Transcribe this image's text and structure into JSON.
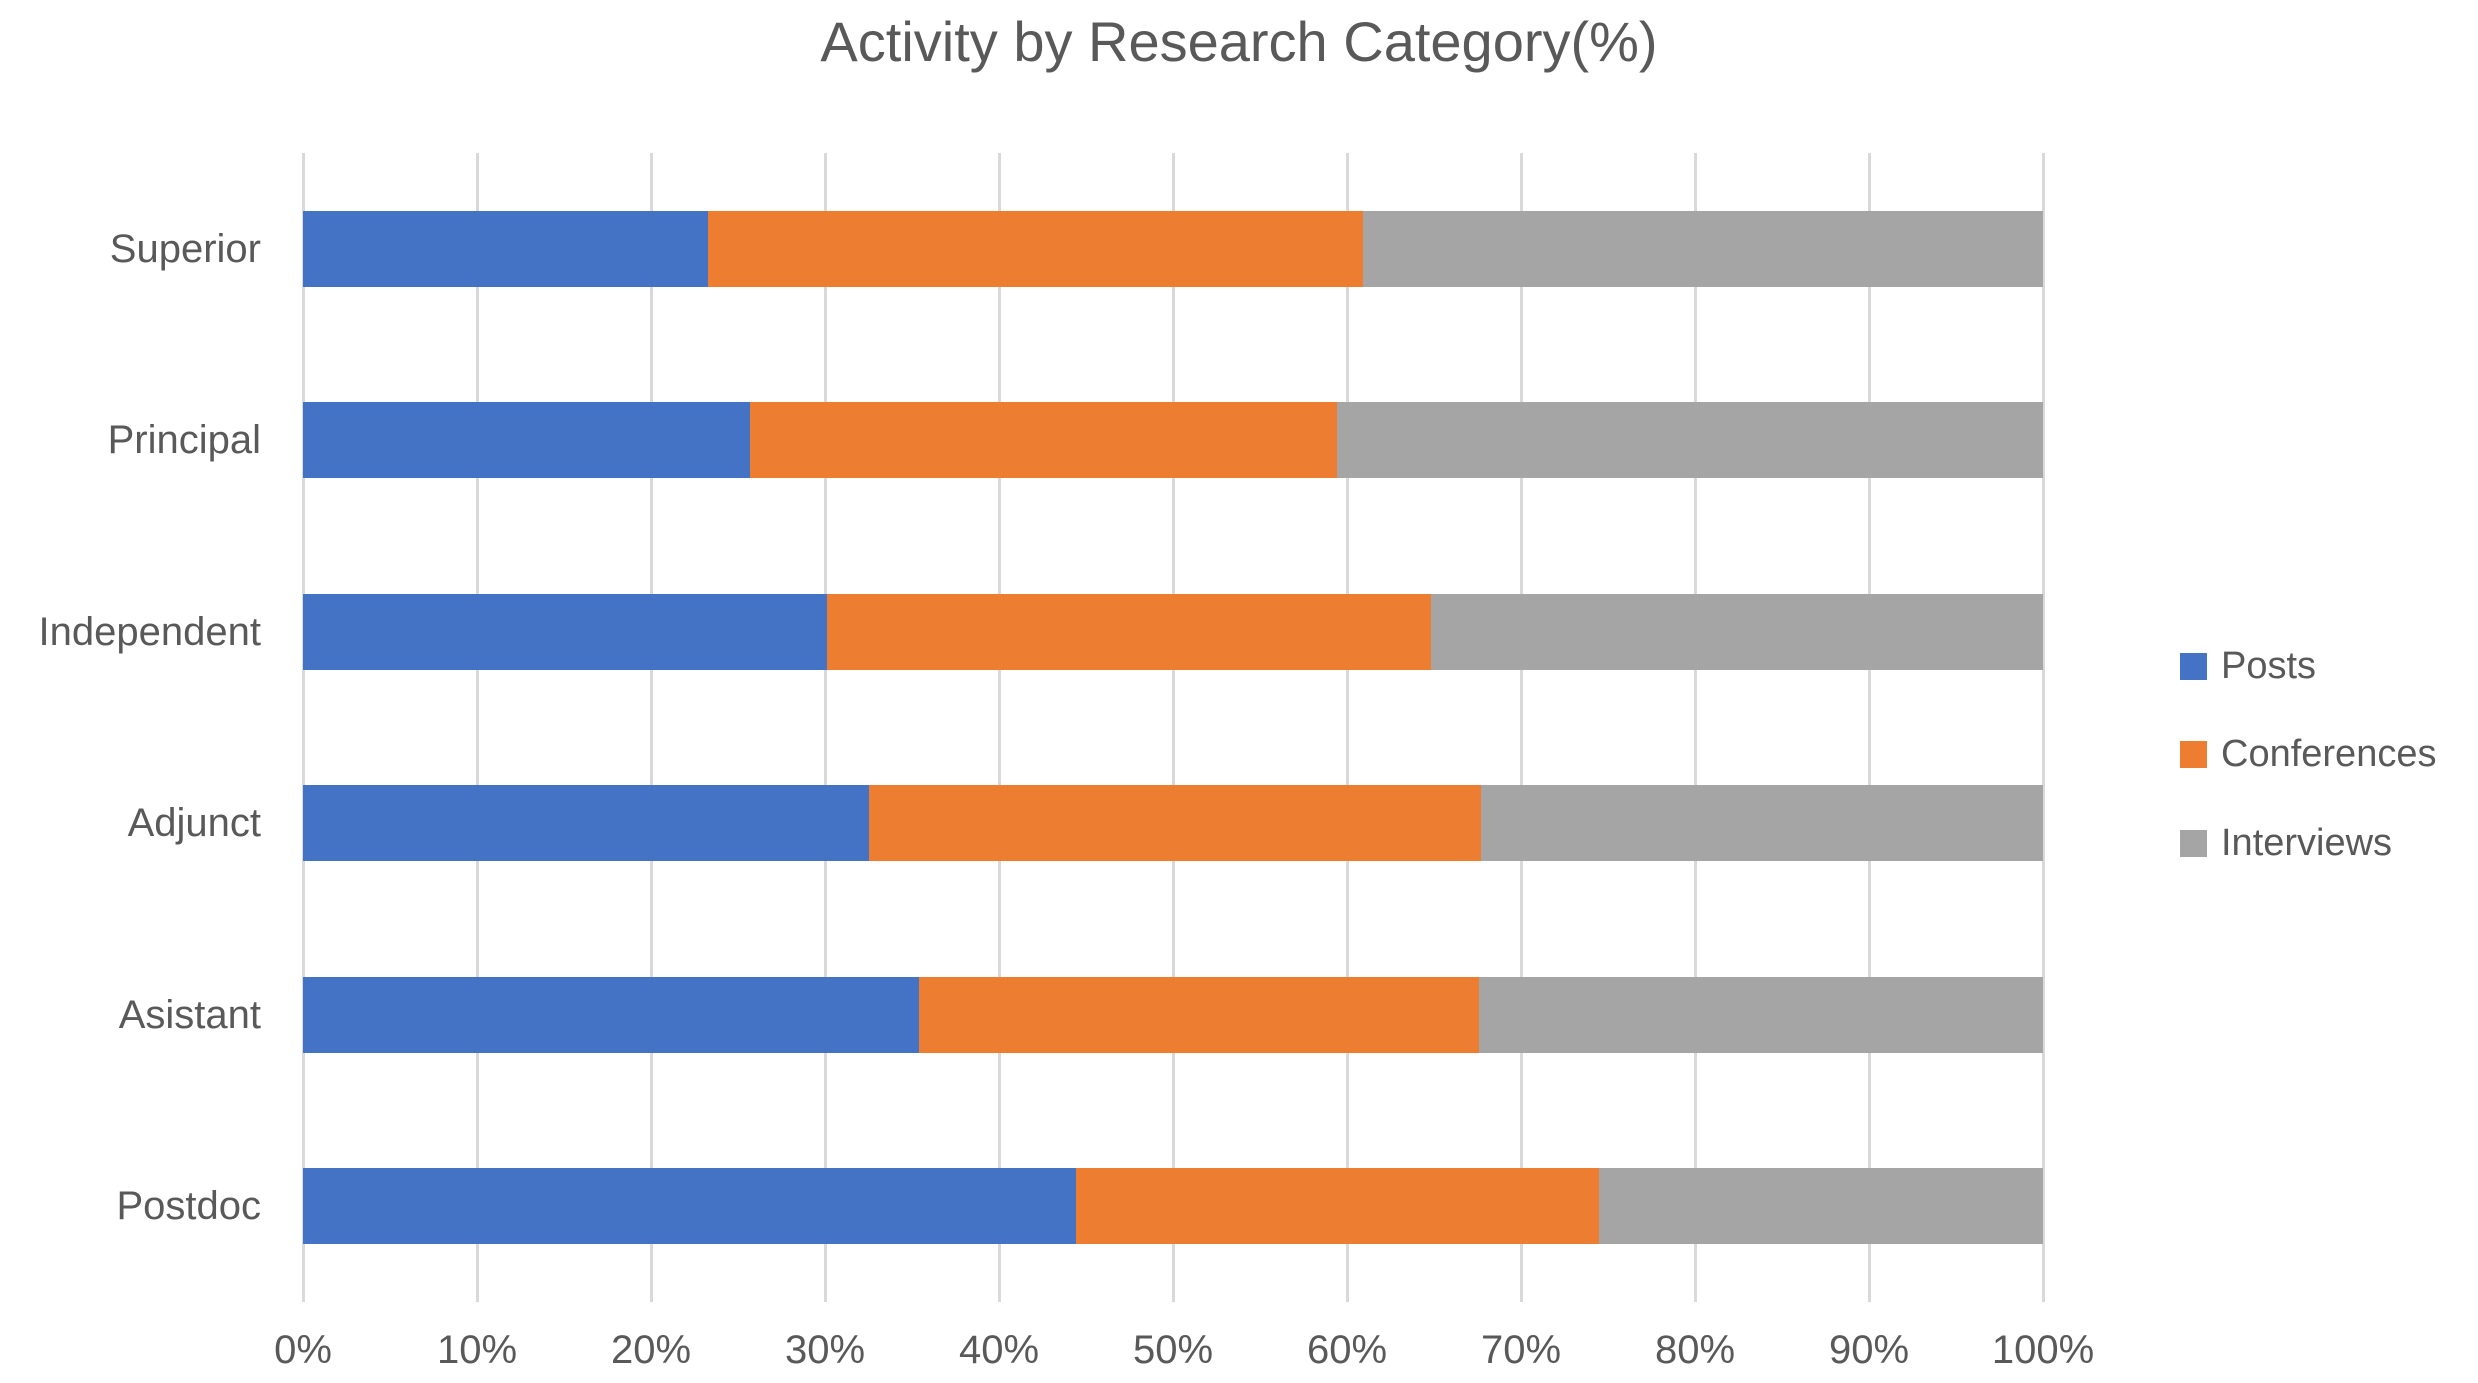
{
  "chart_data": {
    "type": "bar",
    "subtype": "stacked-100-horizontal",
    "title": "Activity by Research Category(%)",
    "categories": [
      "Superior",
      "Principal",
      "Independent",
      "Adjunct",
      "Asistant",
      "Postdoc"
    ],
    "series": [
      {
        "name": "Posts",
        "color": "#4472C4",
        "values": [
          23.3,
          25.7,
          30.1,
          32.5,
          35.4,
          44.4
        ]
      },
      {
        "name": "Conferences",
        "color": "#ED7D31",
        "values": [
          37.6,
          33.7,
          34.7,
          35.2,
          32.2,
          30.1
        ]
      },
      {
        "name": "Interviews",
        "color": "#A5A5A5",
        "values": [
          39.1,
          40.6,
          35.2,
          32.3,
          32.4,
          25.5
        ]
      }
    ],
    "x_axis": {
      "min": 0,
      "max": 100,
      "step": 10,
      "tick_labels": [
        "0%",
        "10%",
        "20%",
        "30%",
        "40%",
        "50%",
        "60%",
        "70%",
        "80%",
        "90%",
        "100%"
      ]
    },
    "legend": {
      "position": "right",
      "entries": [
        "Posts",
        "Conferences",
        "Interviews"
      ]
    },
    "grid": true,
    "colors": {
      "text": "#595959",
      "gridline": "#D9D9D9",
      "background": "#FFFFFF"
    }
  }
}
